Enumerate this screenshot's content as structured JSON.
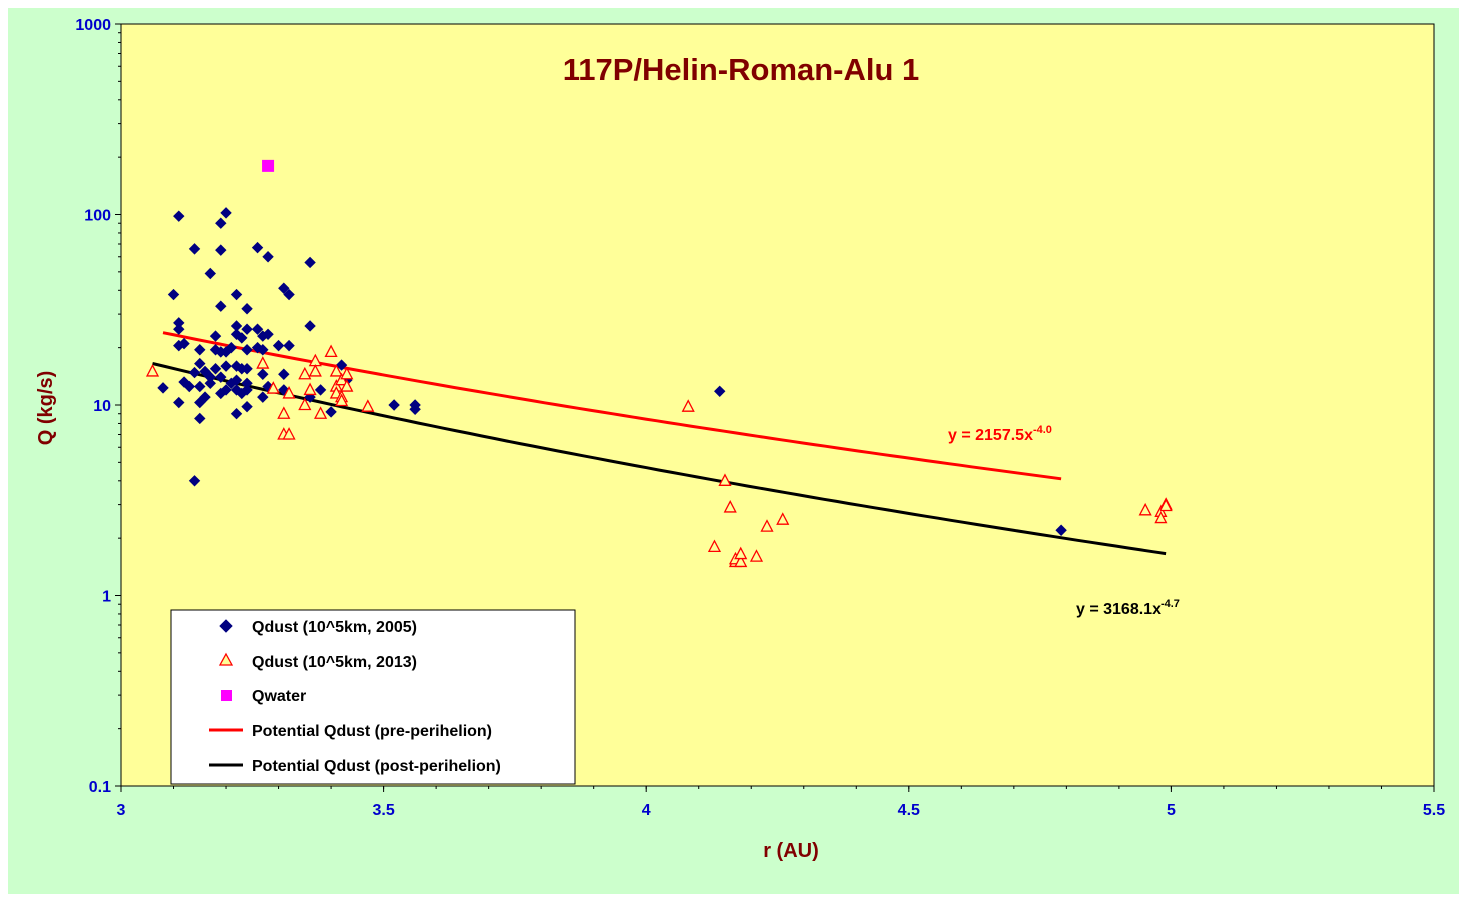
{
  "chart_data": {
    "type": "scatter",
    "title": "117P/Helin-Roman-Alu 1",
    "xlabel": "r (AU)",
    "ylabel": "Q (kg/s)",
    "xlim": [
      3,
      5.5
    ],
    "ylim": [
      0.1,
      1000
    ],
    "yscale": "log",
    "x_ticks": [
      "3",
      "3.5",
      "4",
      "4.5",
      "5",
      "5.5"
    ],
    "y_ticks": [
      "0.1",
      "1",
      "10",
      "100",
      "1000"
    ],
    "legend_position": "bottom-left",
    "series": [
      {
        "name": "Qdust (10^5km, 2005)",
        "marker": "diamond",
        "color": "#000080",
        "points": [
          [
            3.08,
            12.3
          ],
          [
            3.1,
            38
          ],
          [
            3.11,
            27
          ],
          [
            3.11,
            25
          ],
          [
            3.11,
            20.5
          ],
          [
            3.11,
            10.3
          ],
          [
            3.11,
            98
          ],
          [
            3.12,
            13.2
          ],
          [
            3.12,
            21
          ],
          [
            3.13,
            12.5
          ],
          [
            3.14,
            66
          ],
          [
            3.14,
            4.0
          ],
          [
            3.14,
            14.8
          ],
          [
            3.15,
            10.3
          ],
          [
            3.15,
            16.5
          ],
          [
            3.15,
            12.5
          ],
          [
            3.15,
            8.5
          ],
          [
            3.15,
            19.5
          ],
          [
            3.16,
            11
          ],
          [
            3.16,
            15
          ],
          [
            3.17,
            13
          ],
          [
            3.17,
            14
          ],
          [
            3.17,
            49
          ],
          [
            3.18,
            19.5
          ],
          [
            3.18,
            23
          ],
          [
            3.18,
            15.5
          ],
          [
            3.19,
            90
          ],
          [
            3.19,
            65
          ],
          [
            3.19,
            33
          ],
          [
            3.19,
            19
          ],
          [
            3.19,
            14
          ],
          [
            3.19,
            11.5
          ],
          [
            3.2,
            102
          ],
          [
            3.2,
            19
          ],
          [
            3.2,
            16
          ],
          [
            3.2,
            12
          ],
          [
            3.21,
            20
          ],
          [
            3.21,
            13
          ],
          [
            3.22,
            38
          ],
          [
            3.22,
            26
          ],
          [
            3.22,
            23.5
          ],
          [
            3.22,
            16
          ],
          [
            3.22,
            13.5
          ],
          [
            3.22,
            12
          ],
          [
            3.22,
            9
          ],
          [
            3.23,
            22.5
          ],
          [
            3.23,
            15.5
          ],
          [
            3.23,
            11.5
          ],
          [
            3.24,
            32
          ],
          [
            3.24,
            25
          ],
          [
            3.24,
            19.5
          ],
          [
            3.24,
            15.5
          ],
          [
            3.24,
            13
          ],
          [
            3.24,
            12
          ],
          [
            3.24,
            9.8
          ],
          [
            3.26,
            20
          ],
          [
            3.26,
            25
          ],
          [
            3.26,
            67
          ],
          [
            3.27,
            23
          ],
          [
            3.27,
            19.5
          ],
          [
            3.27,
            11
          ],
          [
            3.27,
            14.5
          ],
          [
            3.28,
            60
          ],
          [
            3.28,
            23.5
          ],
          [
            3.28,
            12.5
          ],
          [
            3.3,
            20.5
          ],
          [
            3.31,
            14.5
          ],
          [
            3.31,
            41
          ],
          [
            3.31,
            12
          ],
          [
            3.32,
            20.5
          ],
          [
            3.32,
            38
          ],
          [
            3.36,
            56
          ],
          [
            3.36,
            26
          ],
          [
            3.36,
            11
          ],
          [
            3.38,
            12
          ],
          [
            3.4,
            9.2
          ],
          [
            3.42,
            16.2
          ],
          [
            3.43,
            13.5
          ],
          [
            3.52,
            10
          ],
          [
            3.56,
            9.5
          ],
          [
            3.56,
            10
          ],
          [
            4.14,
            11.8
          ],
          [
            4.79,
            2.2
          ]
        ]
      },
      {
        "name": "Qdust (10^5km, 2013)",
        "marker": "triangle",
        "color": "#ff0000",
        "points": [
          [
            3.06,
            15
          ],
          [
            3.27,
            16.5
          ],
          [
            3.29,
            12.2
          ],
          [
            3.31,
            9
          ],
          [
            3.31,
            7
          ],
          [
            3.32,
            7
          ],
          [
            3.32,
            11.5
          ],
          [
            3.35,
            14.5
          ],
          [
            3.35,
            10
          ],
          [
            3.36,
            12
          ],
          [
            3.37,
            17
          ],
          [
            3.37,
            15
          ],
          [
            3.38,
            9
          ],
          [
            3.4,
            19
          ],
          [
            3.41,
            15
          ],
          [
            3.41,
            12.5
          ],
          [
            3.41,
            11.5
          ],
          [
            3.42,
            13.5
          ],
          [
            3.42,
            11
          ],
          [
            3.42,
            10.5
          ],
          [
            3.43,
            14.5
          ],
          [
            3.43,
            12.5
          ],
          [
            3.47,
            9.8
          ],
          [
            4.08,
            9.8
          ],
          [
            4.13,
            1.8
          ],
          [
            4.15,
            4
          ],
          [
            4.16,
            2.9
          ],
          [
            4.17,
            1.5
          ],
          [
            4.17,
            1.55
          ],
          [
            4.18,
            1.5
          ],
          [
            4.18,
            1.65
          ],
          [
            4.21,
            1.6
          ],
          [
            4.23,
            2.3
          ],
          [
            4.26,
            2.5
          ],
          [
            4.95,
            2.8
          ],
          [
            4.98,
            2.75
          ],
          [
            4.98,
            2.55
          ],
          [
            4.99,
            3.0
          ],
          [
            4.99,
            2.95
          ]
        ]
      },
      {
        "name": "Qwater",
        "marker": "square",
        "color": "#ff00ff",
        "points": [
          [
            3.28,
            180
          ]
        ]
      }
    ],
    "trendlines": [
      {
        "name": "Potential Qdust (pre-perihelion)",
        "color": "#ff0000",
        "coef": 2157.5,
        "exponent": -4.0,
        "x_range": [
          3.08,
          4.79
        ],
        "label": "y = 2157.5x",
        "label_sup": "-4.0"
      },
      {
        "name": "Potential Qdust (post-perihelion)",
        "color": "#000000",
        "coef": 3168.1,
        "exponent": -4.7,
        "x_range": [
          3.06,
          4.99
        ],
        "label": "y = 3168.1x",
        "label_sup": "-4.7"
      }
    ]
  },
  "colors": {
    "outer_background": "#ccffcc",
    "plot_background": "#ffff99",
    "title": "#800000",
    "tick_labels": "#0000cc"
  }
}
